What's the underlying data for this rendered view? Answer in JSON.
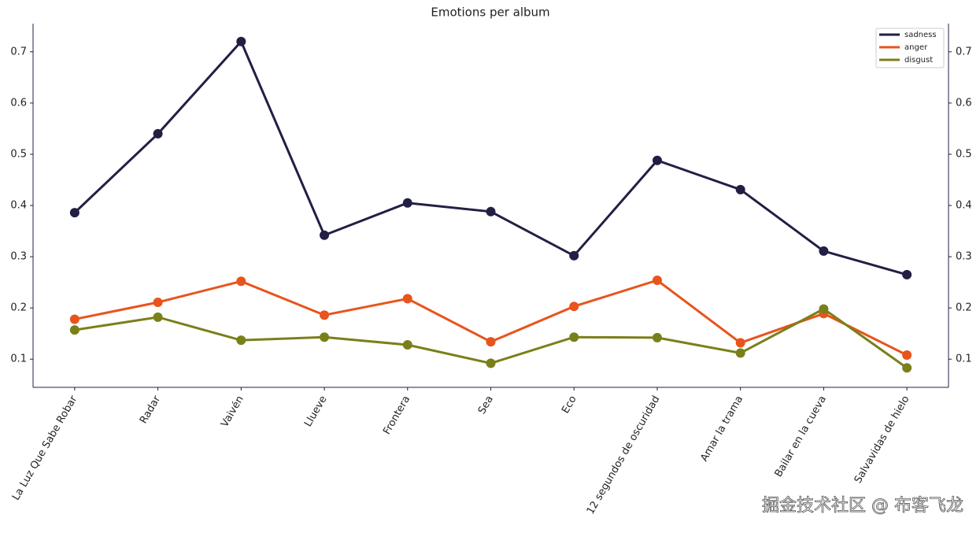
{
  "chart_data": {
    "type": "line",
    "title": "Emotions per album",
    "categories": [
      "La Luz Que Sabe Robar",
      "Radar",
      "Vaivén",
      "Llueve",
      "Frontera",
      "Sea",
      "Eco",
      "12 segundos de oscuridad",
      "Amar la trama",
      "Bailar en la cueva",
      "Salvavidas de hielo"
    ],
    "series": [
      {
        "name": "sadness",
        "color": "#221f45",
        "values": [
          0.386,
          0.54,
          0.72,
          0.342,
          0.405,
          0.388,
          0.302,
          0.488,
          0.431,
          0.311,
          0.265
        ]
      },
      {
        "name": "anger",
        "color": "#e8541c",
        "values": [
          0.178,
          0.211,
          0.252,
          0.186,
          0.218,
          0.134,
          0.203,
          0.254,
          0.132,
          0.189,
          0.108
        ]
      },
      {
        "name": "disgust",
        "color": "#7a8019",
        "values": [
          0.157,
          0.182,
          0.137,
          0.143,
          0.128,
          0.092,
          0.143,
          0.142,
          0.112,
          0.198,
          0.083
        ]
      }
    ],
    "ylim": [
      0.045,
      0.755
    ],
    "yticks": [
      0.1,
      0.2,
      0.3,
      0.4,
      0.5,
      0.6,
      0.7
    ],
    "y2lim": [
      0.045,
      0.755
    ],
    "y2ticks": [
      0.1,
      0.2,
      0.3,
      0.4,
      0.5,
      0.6,
      0.7
    ],
    "legend": "upper right",
    "watermark": "掘金技术社区 @ 布客飞龙"
  }
}
